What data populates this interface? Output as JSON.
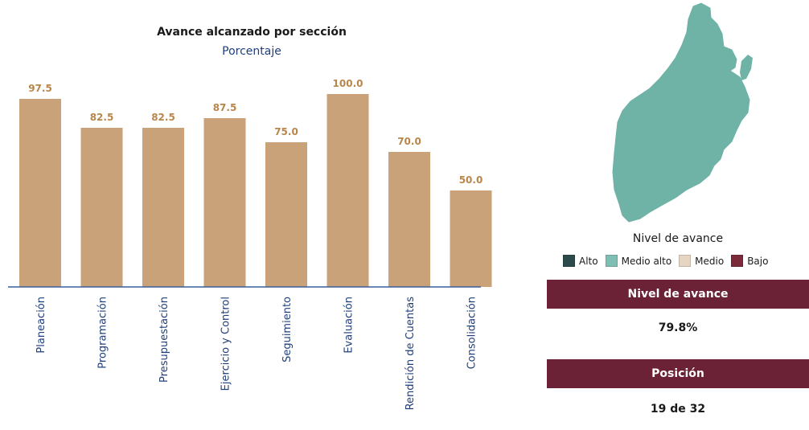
{
  "chart_data": {
    "type": "bar",
    "title": "Avance alcanzado por sección",
    "subtitle": "Porcentaje",
    "categories": [
      "Planeación",
      "Programación",
      "Presupuestación",
      "Ejercicio y Control",
      "Seguimiento",
      "Evaluación",
      "Rendición de Cuentas",
      "Consolidación"
    ],
    "values": [
      97.5,
      82.5,
      82.5,
      87.5,
      75.0,
      100.0,
      70.0,
      50.0
    ],
    "value_labels": [
      "97.5",
      "82.5",
      "82.5",
      "87.5",
      "75.0",
      "100.0",
      "70.0",
      "50.0"
    ],
    "ylim": [
      0,
      100
    ],
    "grid": false,
    "bar_color": "#c9a27a",
    "label_color": "#b8864a",
    "axis_color": "#3a5f9a"
  },
  "legend": {
    "title": "Nivel de avance",
    "items": [
      {
        "label": "Alto",
        "color": "#2c4a4a"
      },
      {
        "label": "Medio alto",
        "color": "#7fbfb3"
      },
      {
        "label": "Medio",
        "color": "#e6d5c3"
      },
      {
        "label": "Bajo",
        "color": "#7a2a3a"
      }
    ]
  },
  "map": {
    "fill_color": "#6fb3a6",
    "level": "Medio alto"
  },
  "summary": {
    "nivel_label": "Nivel de avance",
    "nivel_value": "79.8%",
    "posicion_label": "Posición",
    "posicion_value": "19 de 32"
  }
}
